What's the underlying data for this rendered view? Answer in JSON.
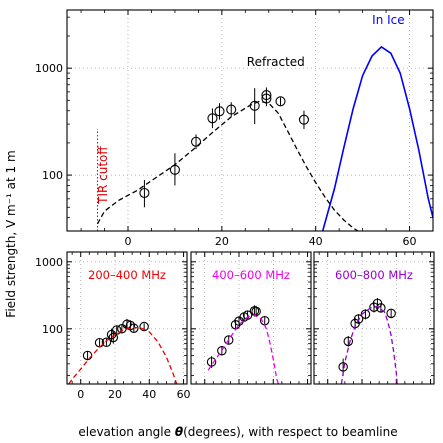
{
  "figure": {
    "ylabel": "Field strength, V m⁻¹ at 1 m",
    "xlabel_prefix": "elevation angle ",
    "xlabel_theta": "θ",
    "xlabel_suffix": "(degrees), with respect to beamline"
  },
  "colors": {
    "axis": "#000000",
    "grid": "#9a9a9a",
    "refracted": "#000000",
    "in_ice": "#0000ff",
    "tir": "#dd0000",
    "band_200_400": "#ee0000",
    "band_400_600": "#ee00ee",
    "band_600_800": "#9900cc"
  },
  "chart_data": [
    {
      "type": "scatter",
      "panel": "main",
      "xlim": [
        -13,
        65
      ],
      "ylim": [
        30,
        3500
      ],
      "yscale": "log",
      "grid": true,
      "xticks": [
        0,
        20,
        40,
        60
      ],
      "xtick_labels": [
        "0",
        "20",
        "40",
        "60"
      ],
      "yticks": [
        100,
        1000
      ],
      "ytick_labels": [
        "100",
        "1000"
      ],
      "annotations": [
        {
          "text": "Refracted",
          "x": 31.5,
          "y": 1050,
          "color_key": "refracted"
        },
        {
          "text": "In Ice",
          "x": 55.5,
          "y": 2600,
          "color_key": "in_ice"
        },
        {
          "text": "TIR cutoff",
          "x": -4.5,
          "y": 100,
          "color_key": "tir",
          "rotation": -90
        }
      ],
      "tir_cutoff_x": -6.5,
      "series": [
        {
          "name": "",
          "style": "points",
          "points": [
            {
              "x": 3.5,
              "y": 68,
              "ylo": 50,
              "yhi": 90
            },
            {
              "x": 10,
              "y": 112,
              "ylo": 80,
              "yhi": 160
            },
            {
              "x": 14.5,
              "y": 205,
              "ylo": 175,
              "yhi": 240
            },
            {
              "x": 18,
              "y": 340,
              "ylo": 275,
              "yhi": 420
            },
            {
              "x": 19.5,
              "y": 395,
              "ylo": 330,
              "yhi": 470
            },
            {
              "x": 22,
              "y": 410,
              "ylo": 350,
              "yhi": 480
            },
            {
              "x": 27,
              "y": 445,
              "ylo": 300,
              "yhi": 650
            },
            {
              "x": 29.5,
              "y": 560,
              "ylo": 470,
              "yhi": 660
            },
            {
              "x": 29.5,
              "y": 520,
              "ylo": 440,
              "yhi": 610
            },
            {
              "x": 32.5,
              "y": 490,
              "ylo": 450,
              "yhi": 530
            },
            {
              "x": 37.5,
              "y": 330,
              "ylo": 270,
              "yhi": 400
            }
          ]
        },
        {
          "name": "",
          "style": "dashed",
          "color_key": "refracted",
          "points": [
            {
              "x": -6.5,
              "y": 35
            },
            {
              "x": -5,
              "y": 46
            },
            {
              "x": -2,
              "y": 58
            },
            {
              "x": 2,
              "y": 72
            },
            {
              "x": 6,
              "y": 95
            },
            {
              "x": 10,
              "y": 125
            },
            {
              "x": 14,
              "y": 175
            },
            {
              "x": 18,
              "y": 250
            },
            {
              "x": 22,
              "y": 350
            },
            {
              "x": 26,
              "y": 450
            },
            {
              "x": 28,
              "y": 490
            },
            {
              "x": 30,
              "y": 470
            },
            {
              "x": 32,
              "y": 380
            },
            {
              "x": 34,
              "y": 260
            },
            {
              "x": 36,
              "y": 175
            },
            {
              "x": 38,
              "y": 120
            },
            {
              "x": 40,
              "y": 85
            },
            {
              "x": 42,
              "y": 62
            },
            {
              "x": 44,
              "y": 47
            },
            {
              "x": 46,
              "y": 38
            },
            {
              "x": 48,
              "y": 32
            },
            {
              "x": 49,
              "y": 30
            }
          ]
        },
        {
          "name": "In Ice",
          "style": "solid",
          "color_key": "in_ice",
          "points": [
            {
              "x": 41.5,
              "y": 30
            },
            {
              "x": 44,
              "y": 75
            },
            {
              "x": 46,
              "y": 180
            },
            {
              "x": 48,
              "y": 420
            },
            {
              "x": 50,
              "y": 850
            },
            {
              "x": 52,
              "y": 1300
            },
            {
              "x": 54,
              "y": 1580
            },
            {
              "x": 56,
              "y": 1380
            },
            {
              "x": 58,
              "y": 900
            },
            {
              "x": 60,
              "y": 420
            },
            {
              "x": 62,
              "y": 170
            },
            {
              "x": 64,
              "y": 60
            },
            {
              "x": 65,
              "y": 40
            }
          ]
        }
      ]
    },
    {
      "type": "scatter",
      "panel": "band",
      "label": "200–400 MHz",
      "color_key": "band_200_400",
      "xlim": [
        -8,
        62
      ],
      "ylim": [
        15,
        1400
      ],
      "yscale": "log",
      "grid": true,
      "xticks": [
        0,
        20,
        40,
        60
      ],
      "xtick_labels": [
        "0",
        "20",
        "40",
        "60"
      ],
      "yticks": [
        100,
        1000
      ],
      "ytick_labels": [
        "100",
        "1000"
      ],
      "series": [
        {
          "name": "",
          "style": "points",
          "points": [
            {
              "x": 4,
              "y": 40,
              "ylo": 34,
              "yhi": 46
            },
            {
              "x": 11,
              "y": 62,
              "ylo": 55,
              "yhi": 70
            },
            {
              "x": 15,
              "y": 63,
              "ylo": 56,
              "yhi": 71
            },
            {
              "x": 18,
              "y": 82,
              "ylo": 66,
              "yhi": 100
            },
            {
              "x": 19,
              "y": 74,
              "ylo": 60,
              "yhi": 90
            },
            {
              "x": 21,
              "y": 96,
              "ylo": 85,
              "yhi": 108
            },
            {
              "x": 24,
              "y": 100,
              "ylo": 88,
              "yhi": 112
            },
            {
              "x": 27,
              "y": 117,
              "ylo": 98,
              "yhi": 140
            },
            {
              "x": 29,
              "y": 112,
              "ylo": 94,
              "yhi": 134
            },
            {
              "x": 31,
              "y": 102,
              "ylo": 90,
              "yhi": 116
            },
            {
              "x": 37,
              "y": 108,
              "ylo": 96,
              "yhi": 121
            }
          ]
        },
        {
          "name": "",
          "style": "dashed",
          "points": [
            {
              "x": -7,
              "y": 15
            },
            {
              "x": -4,
              "y": 19
            },
            {
              "x": 0,
              "y": 25
            },
            {
              "x": 5,
              "y": 36
            },
            {
              "x": 10,
              "y": 50
            },
            {
              "x": 15,
              "y": 66
            },
            {
              "x": 20,
              "y": 82
            },
            {
              "x": 25,
              "y": 96
            },
            {
              "x": 30,
              "y": 104
            },
            {
              "x": 35,
              "y": 104
            },
            {
              "x": 40,
              "y": 90
            },
            {
              "x": 45,
              "y": 64
            },
            {
              "x": 50,
              "y": 38
            },
            {
              "x": 54,
              "y": 21
            },
            {
              "x": 56,
              "y": 15
            }
          ]
        }
      ]
    },
    {
      "type": "scatter",
      "panel": "band",
      "label": "400–600 MHz",
      "color_key": "band_400_600",
      "xlim": [
        -8,
        62
      ],
      "ylim": [
        15,
        1400
      ],
      "yscale": "log",
      "grid": true,
      "xticks": [
        0,
        20,
        40,
        60
      ],
      "xtick_labels": [],
      "yticks": [
        100,
        1000
      ],
      "ytick_labels": [],
      "series": [
        {
          "name": "",
          "style": "points",
          "points": [
            {
              "x": 4,
              "y": 32,
              "ylo": 26,
              "yhi": 39
            },
            {
              "x": 10,
              "y": 47,
              "ylo": 40,
              "yhi": 55
            },
            {
              "x": 14,
              "y": 68,
              "ylo": 59,
              "yhi": 78
            },
            {
              "x": 18,
              "y": 115,
              "ylo": 100,
              "yhi": 132
            },
            {
              "x": 20,
              "y": 130,
              "ylo": 113,
              "yhi": 150
            },
            {
              "x": 23,
              "y": 150,
              "ylo": 128,
              "yhi": 175
            },
            {
              "x": 25,
              "y": 160,
              "ylo": 138,
              "yhi": 185
            },
            {
              "x": 29,
              "y": 185,
              "ylo": 152,
              "yhi": 225
            },
            {
              "x": 30,
              "y": 182,
              "ylo": 150,
              "yhi": 220
            },
            {
              "x": 35,
              "y": 132,
              "ylo": 117,
              "yhi": 149
            }
          ]
        },
        {
          "name": "",
          "style": "dashed",
          "points": [
            {
              "x": 2,
              "y": 24
            },
            {
              "x": 6,
              "y": 34
            },
            {
              "x": 10,
              "y": 48
            },
            {
              "x": 15,
              "y": 75
            },
            {
              "x": 20,
              "y": 115
            },
            {
              "x": 25,
              "y": 150
            },
            {
              "x": 29,
              "y": 160
            },
            {
              "x": 33,
              "y": 140
            },
            {
              "x": 36,
              "y": 100
            },
            {
              "x": 38,
              "y": 62
            },
            {
              "x": 40,
              "y": 35
            },
            {
              "x": 42,
              "y": 18
            },
            {
              "x": 43,
              "y": 15
            }
          ]
        }
      ]
    },
    {
      "type": "scatter",
      "panel": "band",
      "label": "600–800 MHz",
      "color_key": "band_600_800",
      "xlim": [
        -8,
        62
      ],
      "ylim": [
        15,
        1400
      ],
      "yscale": "log",
      "grid": true,
      "xticks": [
        0,
        20,
        40,
        60
      ],
      "xtick_labels": [],
      "yticks": [
        100,
        1000
      ],
      "ytick_labels": [],
      "series": [
        {
          "name": "",
          "style": "points",
          "points": [
            {
              "x": 9,
              "y": 27,
              "ylo": 20,
              "yhi": 36
            },
            {
              "x": 12,
              "y": 65,
              "ylo": 54,
              "yhi": 78
            },
            {
              "x": 16,
              "y": 120,
              "ylo": 98,
              "yhi": 146
            },
            {
              "x": 18,
              "y": 140,
              "ylo": 118,
              "yhi": 165
            },
            {
              "x": 22,
              "y": 165,
              "ylo": 138,
              "yhi": 196
            },
            {
              "x": 27,
              "y": 210,
              "ylo": 175,
              "yhi": 250
            },
            {
              "x": 29,
              "y": 240,
              "ylo": 200,
              "yhi": 288
            },
            {
              "x": 31,
              "y": 205,
              "ylo": 176,
              "yhi": 239
            },
            {
              "x": 37,
              "y": 170,
              "ylo": 150,
              "yhi": 192
            }
          ]
        },
        {
          "name": "",
          "style": "dashed",
          "points": [
            {
              "x": 8,
              "y": 15
            },
            {
              "x": 10,
              "y": 32
            },
            {
              "x": 13,
              "y": 65
            },
            {
              "x": 16,
              "y": 110
            },
            {
              "x": 20,
              "y": 165
            },
            {
              "x": 25,
              "y": 205
            },
            {
              "x": 29,
              "y": 215
            },
            {
              "x": 33,
              "y": 180
            },
            {
              "x": 35,
              "y": 130
            },
            {
              "x": 37,
              "y": 80
            },
            {
              "x": 38.5,
              "y": 45
            },
            {
              "x": 40,
              "y": 22
            },
            {
              "x": 40.5,
              "y": 15
            }
          ]
        }
      ]
    }
  ]
}
